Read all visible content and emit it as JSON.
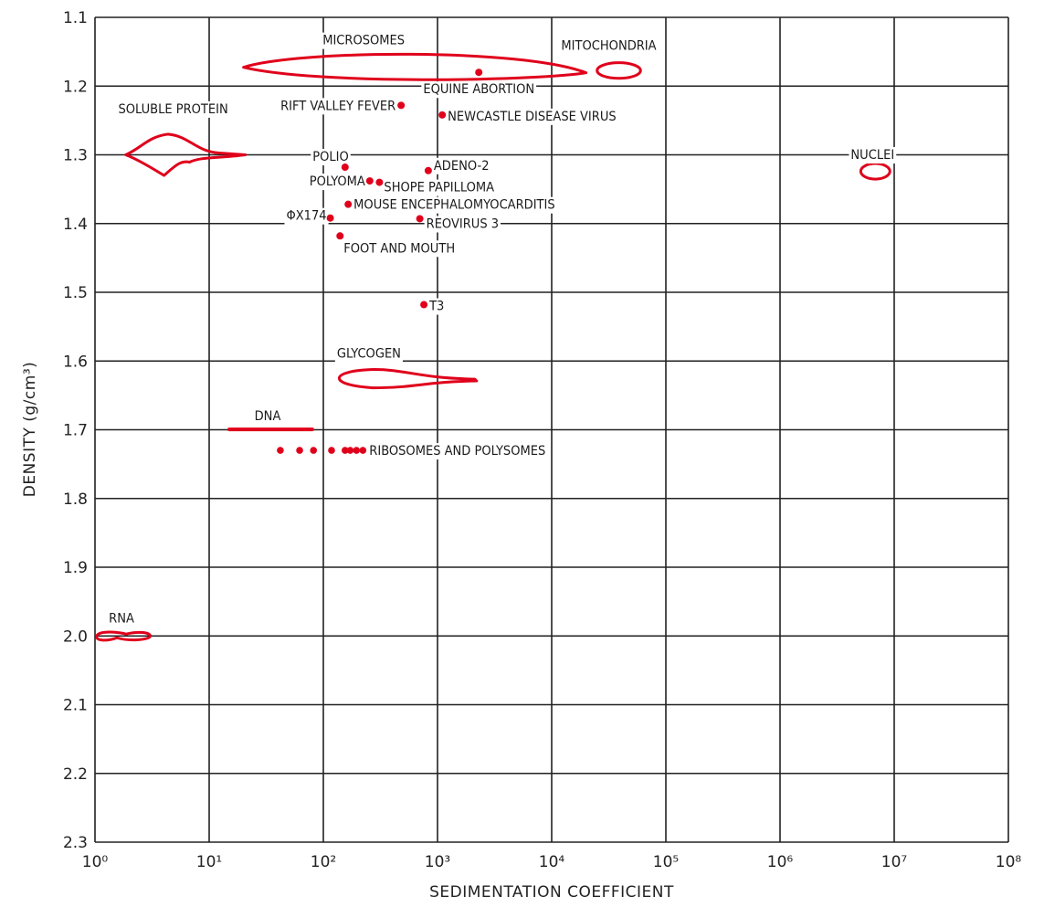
{
  "chart_data": {
    "type": "scatter",
    "xlabel": "SEDIMENTATION COEFFICIENT",
    "ylabel": "DENSITY (g/cm³)",
    "xscale": "log",
    "xlim": [
      1,
      100000000
    ],
    "ylim": [
      1.1,
      2.3
    ],
    "y_inverted": true,
    "grid": true,
    "xticks": [
      "10⁰",
      "10¹",
      "10²",
      "10³",
      "10⁴",
      "10⁵",
      "10⁶",
      "10⁷",
      "10⁸"
    ],
    "yticks": [
      "1.1",
      "1.2",
      "1.3",
      "1.4",
      "1.5",
      "1.6",
      "1.7",
      "1.8",
      "1.9",
      "2.0",
      "2.1",
      "2.2",
      "2.3"
    ],
    "marker_color": "#e0001b",
    "points": [
      {
        "label": "EQUINE ABORTION",
        "x": 2300,
        "y": 1.18
      },
      {
        "label": "RIFT VALLEY FEVER",
        "x": 480,
        "y": 1.228
      },
      {
        "label": "NEWCASTLE DISEASE VIRUS",
        "x": 1100,
        "y": 1.242
      },
      {
        "label": "POLIO",
        "x": 155,
        "y": 1.318
      },
      {
        "label": "ADENO-2",
        "x": 830,
        "y": 1.323
      },
      {
        "label": "POLYOMA",
        "x": 255,
        "y": 1.338
      },
      {
        "label": "SHOPE PAPILLOMA",
        "x": 310,
        "y": 1.34
      },
      {
        "label": "MOUSE ENCEPHALOMYOCARDITIS",
        "x": 165,
        "y": 1.372
      },
      {
        "label": "ΦX174",
        "x": 115,
        "y": 1.392
      },
      {
        "label": "REOVIRUS 3",
        "x": 700,
        "y": 1.393
      },
      {
        "label": "FOOT AND MOUTH",
        "x": 140,
        "y": 1.418
      },
      {
        "label": "T3",
        "x": 760,
        "y": 1.518
      }
    ],
    "ribosomes": {
      "label": "RIBOSOMES AND POLYSOMES",
      "y": 1.73,
      "x": [
        42,
        62,
        82,
        118,
        155,
        172,
        195,
        222
      ]
    },
    "regions": [
      {
        "label": "MICROSOMES",
        "x": [
          20,
          20000
        ],
        "y": [
          1.15,
          1.19
        ]
      },
      {
        "label": "MITOCHONDRIA",
        "x": [
          25000,
          60000
        ],
        "y": [
          1.162,
          1.19
        ]
      },
      {
        "label": "SOLUBLE PROTEIN",
        "x": [
          2,
          20
        ],
        "y": [
          1.27,
          1.33
        ]
      },
      {
        "label": "NUCLEI",
        "x": [
          5000000,
          9000000
        ],
        "y": [
          1.31,
          1.33
        ]
      },
      {
        "label": "GLYCOGEN",
        "x": [
          120,
          2200
        ],
        "y": [
          1.615,
          1.635
        ]
      },
      {
        "label": "DNA",
        "x": [
          15,
          80
        ],
        "y": [
          1.697,
          1.702
        ]
      },
      {
        "label": "RNA",
        "x": [
          1,
          3
        ],
        "y": [
          1.995,
          2.005
        ]
      }
    ]
  }
}
